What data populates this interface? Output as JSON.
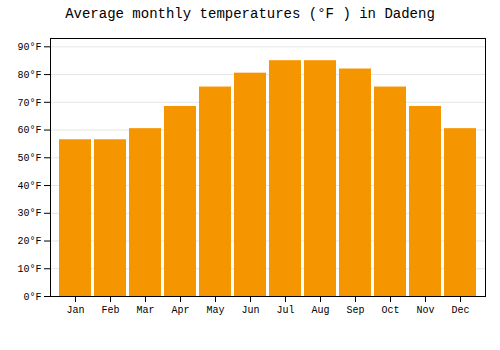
{
  "chart_data": {
    "type": "bar",
    "title": "Average monthly temperatures (°F ) in Dadeng",
    "categories": [
      "Jan",
      "Feb",
      "Mar",
      "Apr",
      "May",
      "Jun",
      "Jul",
      "Aug",
      "Sep",
      "Oct",
      "Nov",
      "Dec"
    ],
    "values": [
      56.5,
      56.5,
      60.5,
      68.5,
      75.5,
      80.5,
      85.0,
      85.0,
      82.0,
      75.5,
      68.5,
      60.5
    ],
    "color": "#F59500",
    "ylim": [
      0,
      93
    ],
    "yticks": [
      {
        "value": 0,
        "label": "0°F"
      },
      {
        "value": 10,
        "label": "10°F"
      },
      {
        "value": 20,
        "label": "20°F"
      },
      {
        "value": 30,
        "label": "30°F"
      },
      {
        "value": 40,
        "label": "40°F"
      },
      {
        "value": 50,
        "label": "50°F"
      },
      {
        "value": 60,
        "label": "60°F"
      },
      {
        "value": 70,
        "label": "70°F"
      },
      {
        "value": 80,
        "label": "80°F"
      },
      {
        "value": 90,
        "label": "90°F"
      }
    ],
    "grid": true
  }
}
